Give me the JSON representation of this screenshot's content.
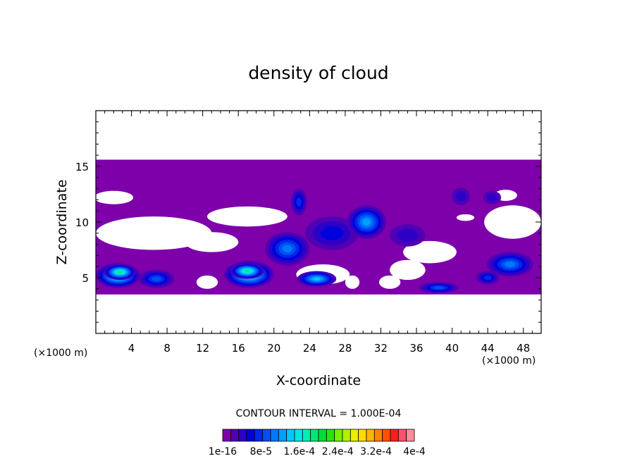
{
  "chart_data": {
    "type": "heatmap",
    "title": "density of cloud",
    "xlabel": "X-coordinate",
    "ylabel": "Z-coordinate",
    "x_unit": "(×1000 m)",
    "z_unit": "(×1000 m)",
    "xlim": [
      0,
      50
    ],
    "ylim": [
      0,
      20
    ],
    "x_ticks": [
      4,
      8,
      12,
      16,
      20,
      24,
      28,
      32,
      36,
      40,
      44,
      48
    ],
    "y_ticks": [
      5,
      10,
      15
    ],
    "contour_interval_text": "CONTOUR INTERVAL = 1.000E-04",
    "colorbar": {
      "levels": [
        "1e-16",
        "8e-5",
        "1.6e-4",
        "2.4e-4",
        "3.2e-4",
        "4e-4"
      ],
      "label_text": [
        "1e-16",
        "8e-5",
        "1.6e-4",
        "2.4e-4",
        "3.2e-4",
        "4e-4"
      ],
      "colors": [
        "#7d00aa",
        "#5000b4",
        "#2d00c8",
        "#0000dc",
        "#0028e6",
        "#0050f0",
        "#0078ff",
        "#00a0ff",
        "#00c8ff",
        "#00e6e6",
        "#00f0b4",
        "#00e678",
        "#00dc3c",
        "#28e600",
        "#78f000",
        "#b4f000",
        "#e6f000",
        "#ffdc00",
        "#ffb400",
        "#ff8200",
        "#ff5000",
        "#ff1e1e",
        "#ff506e",
        "#ff8c9a"
      ]
    },
    "cloud_layer": {
      "base_color": "#7d00aa",
      "z_top": 15.6,
      "z_bottom": 3.5
    },
    "cells": [
      {
        "x": 2.5,
        "z": 5.2,
        "rx": 2.5,
        "rz": 1.1,
        "level": 10
      },
      {
        "x": 2.7,
        "z": 5.5,
        "rx": 1.8,
        "rz": 0.7,
        "level": 11
      },
      {
        "x": 6.8,
        "z": 4.9,
        "rx": 2.0,
        "rz": 0.8,
        "level": 5
      },
      {
        "x": 17.2,
        "z": 5.3,
        "rx": 2.8,
        "rz": 1.2,
        "level": 10
      },
      {
        "x": 17.0,
        "z": 5.6,
        "rx": 1.9,
        "rz": 0.7,
        "level": 11
      },
      {
        "x": 21.5,
        "z": 7.6,
        "rx": 2.5,
        "rz": 1.5,
        "level": 6
      },
      {
        "x": 24.8,
        "z": 4.9,
        "rx": 2.2,
        "rz": 0.7,
        "level": 8
      },
      {
        "x": 22.8,
        "z": 11.8,
        "rx": 0.9,
        "rz": 1.2,
        "level": 4
      },
      {
        "x": 26.5,
        "z": 9.0,
        "rx": 3.0,
        "rz": 1.5,
        "level": 3
      },
      {
        "x": 30.4,
        "z": 10.0,
        "rx": 2.2,
        "rz": 1.5,
        "level": 7
      },
      {
        "x": 35.0,
        "z": 8.8,
        "rx": 2.0,
        "rz": 1.0,
        "level": 2
      },
      {
        "x": 38.5,
        "z": 4.1,
        "rx": 2.2,
        "rz": 0.5,
        "level": 5
      },
      {
        "x": 46.5,
        "z": 6.2,
        "rx": 2.6,
        "rz": 1.1,
        "level": 6
      },
      {
        "x": 44.0,
        "z": 5.0,
        "rx": 1.3,
        "rz": 0.6,
        "level": 4
      },
      {
        "x": 41.0,
        "z": 12.3,
        "rx": 1.0,
        "rz": 0.8,
        "level": 2
      },
      {
        "x": 44.5,
        "z": 12.2,
        "rx": 1.0,
        "rz": 0.6,
        "level": 2
      }
    ],
    "clear_regions": [
      {
        "x": 2.0,
        "z": 12.2,
        "rx": 2.2,
        "rz": 0.6
      },
      {
        "x": 6.5,
        "z": 9.0,
        "rx": 6.5,
        "rz": 1.5
      },
      {
        "x": 13.0,
        "z": 8.2,
        "rx": 3.0,
        "rz": 0.9
      },
      {
        "x": 17.0,
        "z": 10.5,
        "rx": 4.5,
        "rz": 0.9
      },
      {
        "x": 25.5,
        "z": 5.3,
        "rx": 3.0,
        "rz": 0.9
      },
      {
        "x": 37.5,
        "z": 7.3,
        "rx": 3.0,
        "rz": 1.0
      },
      {
        "x": 35.0,
        "z": 5.7,
        "rx": 2.0,
        "rz": 0.9
      },
      {
        "x": 41.5,
        "z": 10.4,
        "rx": 1.0,
        "rz": 0.3
      },
      {
        "x": 46.8,
        "z": 10.0,
        "rx": 3.2,
        "rz": 1.5
      },
      {
        "x": 46.0,
        "z": 12.4,
        "rx": 1.3,
        "rz": 0.5
      },
      {
        "x": 12.5,
        "z": 4.6,
        "rx": 1.2,
        "rz": 0.6
      },
      {
        "x": 33.0,
        "z": 4.6,
        "rx": 1.2,
        "rz": 0.6
      },
      {
        "x": 28.8,
        "z": 4.6,
        "rx": 0.8,
        "rz": 0.6
      }
    ]
  }
}
